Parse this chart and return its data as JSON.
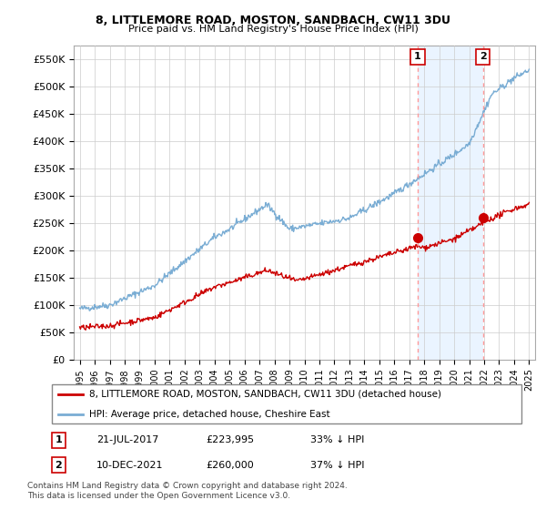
{
  "title": "8, LITTLEMORE ROAD, MOSTON, SANDBACH, CW11 3DU",
  "subtitle": "Price paid vs. HM Land Registry's House Price Index (HPI)",
  "ylabel_ticks": [
    "£0",
    "£50K",
    "£100K",
    "£150K",
    "£200K",
    "£250K",
    "£300K",
    "£350K",
    "£400K",
    "£450K",
    "£500K",
    "£550K"
  ],
  "ytick_values": [
    0,
    50000,
    100000,
    150000,
    200000,
    250000,
    300000,
    350000,
    400000,
    450000,
    500000,
    550000
  ],
  "ylim": [
    0,
    575000
  ],
  "hpi_color": "#7aadd4",
  "price_color": "#cc0000",
  "marker_color": "#cc0000",
  "vline_color": "#ff9999",
  "shade_color": "#ddeeff",
  "annotation_box_color": "#cc0000",
  "legend_label_price": "8, LITTLEMORE ROAD, MOSTON, SANDBACH, CW11 3DU (detached house)",
  "legend_label_hpi": "HPI: Average price, detached house, Cheshire East",
  "transaction1_label": "1",
  "transaction1_date": "21-JUL-2017",
  "transaction1_price": "£223,995",
  "transaction1_pct": "33% ↓ HPI",
  "transaction2_label": "2",
  "transaction2_date": "10-DEC-2021",
  "transaction2_price": "£260,000",
  "transaction2_pct": "37% ↓ HPI",
  "footnote": "Contains HM Land Registry data © Crown copyright and database right 2024.\nThis data is licensed under the Open Government Licence v3.0.",
  "marker1_x_year": 2017.55,
  "marker1_y": 223995,
  "marker2_x_year": 2021.92,
  "marker2_y": 260000,
  "xlim_left": 1994.6,
  "xlim_right": 2025.4
}
